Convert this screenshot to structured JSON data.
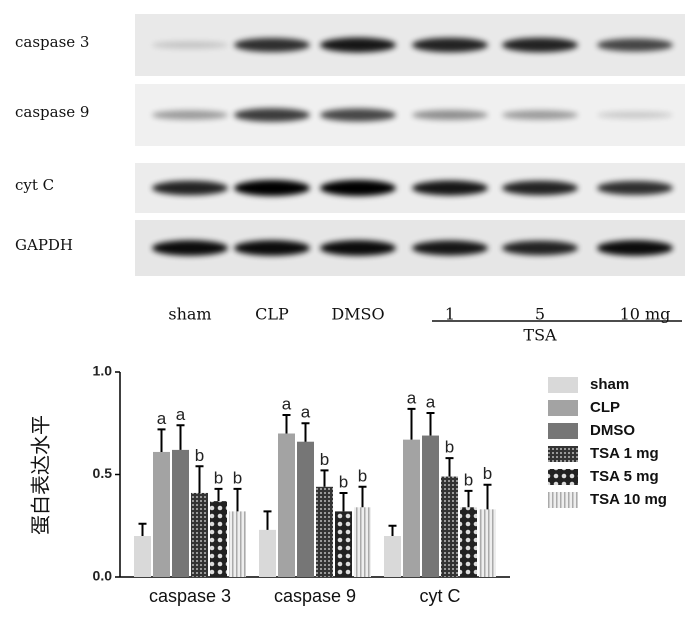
{
  "blot": {
    "rows": [
      "caspase 3",
      "caspase 9",
      "cyt C",
      "GAPDH"
    ],
    "lanes": [
      "sham",
      "CLP",
      "DMSO",
      "1",
      "5",
      "10 mg"
    ],
    "group_label": "TSA"
  },
  "chart_data": {
    "type": "bar",
    "y_label": "蛋白表达水平",
    "categories": [
      "caspase 3",
      "caspase 9",
      "cyt C"
    ],
    "ylim": [
      0,
      1.0
    ],
    "yticks": [
      {
        "value": 0,
        "label": "0.0"
      },
      {
        "value": 0.5,
        "label": "0.5"
      },
      {
        "value": 1.0,
        "label": "1.0"
      }
    ],
    "series": [
      {
        "name": "sham",
        "color": "#d9d9d9",
        "values": [
          0.2,
          0.23,
          0.2
        ],
        "errors": [
          0.06,
          0.09,
          0.05
        ],
        "labels": [
          null,
          null,
          null
        ]
      },
      {
        "name": "CLP",
        "color": "#a3a3a3",
        "values": [
          0.61,
          0.7,
          0.67
        ],
        "errors": [
          0.11,
          0.09,
          0.15
        ],
        "labels": [
          "a",
          "a",
          "a"
        ]
      },
      {
        "name": "DMSO",
        "color": "#767676",
        "values": [
          0.62,
          0.66,
          0.69
        ],
        "errors": [
          0.12,
          0.09,
          0.11
        ],
        "labels": [
          "a",
          "a",
          "a"
        ]
      },
      {
        "name": "TSA 1 mg",
        "color": "#333333",
        "pattern": "dots",
        "values": [
          0.41,
          0.44,
          0.49
        ],
        "errors": [
          0.13,
          0.08,
          0.09
        ],
        "labels": [
          "b",
          "b",
          "b"
        ]
      },
      {
        "name": "TSA 5 mg",
        "color": "#222222",
        "pattern": "cross",
        "values": [
          0.37,
          0.32,
          0.34
        ],
        "errors": [
          0.06,
          0.09,
          0.08
        ],
        "labels": [
          "b",
          "b",
          "b"
        ]
      },
      {
        "name": "TSA 10 mg",
        "color": "#bbbbbb",
        "pattern": "lines",
        "values": [
          0.32,
          0.34,
          0.33
        ],
        "errors": [
          0.11,
          0.1,
          0.12
        ],
        "labels": [
          "b",
          "b",
          "b"
        ]
      }
    ]
  }
}
